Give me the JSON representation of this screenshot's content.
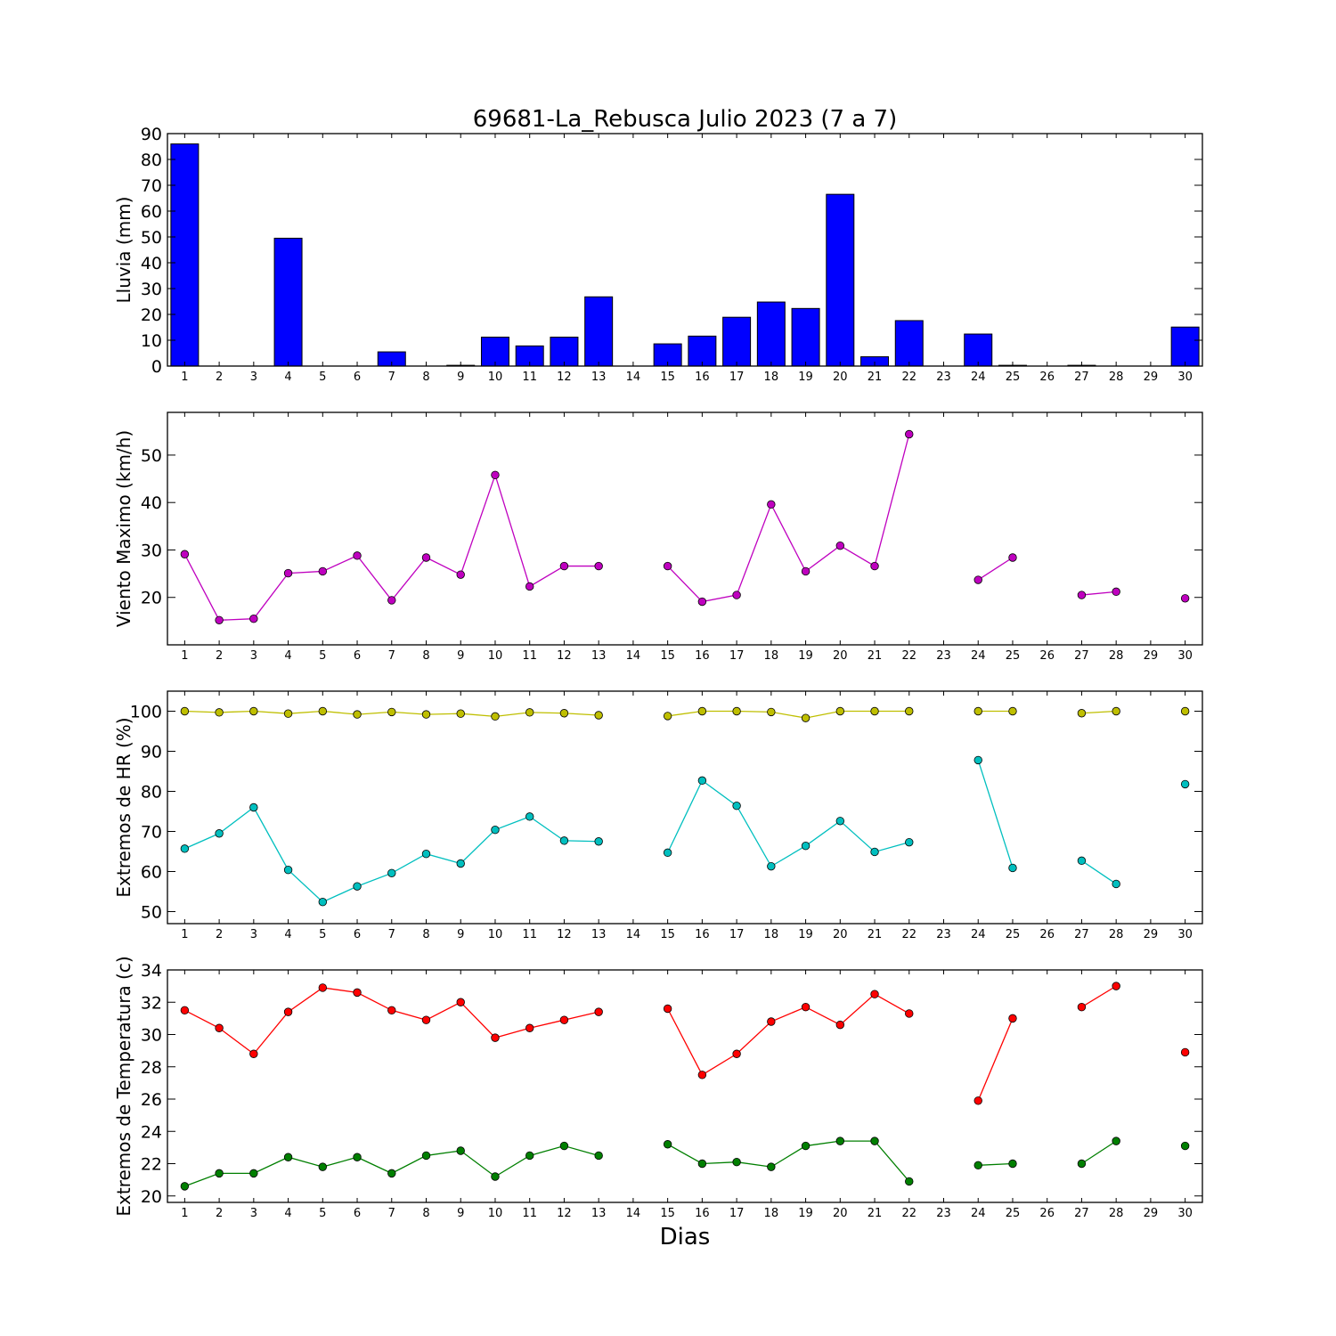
{
  "title": "69681-La_Rebusca Julio 2023  (7 a 7)",
  "xlabel": "Dias",
  "chart_data": [
    {
      "type": "bar",
      "ylabel": "Lluvia (mm)",
      "ylim": [
        0,
        90
      ],
      "yticks": [
        0,
        10,
        20,
        30,
        40,
        50,
        60,
        70,
        80,
        90
      ],
      "xticks": [
        1,
        2,
        3,
        4,
        5,
        6,
        7,
        8,
        9,
        10,
        11,
        12,
        13,
        14,
        15,
        16,
        17,
        18,
        19,
        20,
        21,
        22,
        23,
        24,
        25,
        26,
        27,
        28,
        29,
        30
      ],
      "xlim": [
        0.5,
        30.5
      ],
      "color": "#0000ff",
      "series": [
        {
          "x": [
            1,
            2,
            3,
            4,
            5,
            6,
            7,
            8,
            9,
            10,
            11,
            12,
            13,
            14,
            15,
            16,
            17,
            18,
            19,
            20,
            21,
            22,
            23,
            24,
            25,
            26,
            27,
            28,
            29,
            30
          ],
          "values": [
            86,
            0,
            0,
            49.5,
            0,
            0,
            5.5,
            0,
            0.3,
            11.2,
            7.8,
            11.2,
            26.8,
            0,
            8.6,
            11.6,
            18.9,
            24.8,
            22.3,
            66.5,
            3.6,
            17.6,
            0,
            12.4,
            0.3,
            0,
            0.3,
            0,
            0,
            15.1
          ]
        }
      ]
    },
    {
      "type": "line",
      "ylabel": "Viento Maximo (km/h)",
      "ylim": [
        10,
        59
      ],
      "yticks": [
        20,
        30,
        40,
        50
      ],
      "xticks": [
        1,
        2,
        3,
        4,
        5,
        6,
        7,
        8,
        9,
        10,
        11,
        12,
        13,
        14,
        15,
        16,
        17,
        18,
        19,
        20,
        21,
        22,
        23,
        24,
        25,
        26,
        27,
        28,
        29,
        30
      ],
      "xlim": [
        0.5,
        30.5
      ],
      "series": [
        {
          "color": "#bf00bf",
          "values": [
            29.1,
            15.2,
            15.5,
            25.1,
            25.5,
            28.8,
            19.4,
            28.4,
            24.8,
            45.8,
            22.3,
            26.6,
            26.6,
            null,
            26.6,
            19.1,
            20.5,
            39.6,
            25.5,
            30.9,
            26.6,
            54.4,
            null,
            23.7,
            28.4,
            null,
            20.5,
            21.2,
            null,
            19.8
          ]
        }
      ]
    },
    {
      "type": "line",
      "ylabel": "Extremos de HR (%)",
      "ylim": [
        47,
        105
      ],
      "yticks": [
        50,
        60,
        70,
        80,
        90,
        100
      ],
      "xticks": [
        1,
        2,
        3,
        4,
        5,
        6,
        7,
        8,
        9,
        10,
        11,
        12,
        13,
        14,
        15,
        16,
        17,
        18,
        19,
        20,
        21,
        22,
        23,
        24,
        25,
        26,
        27,
        28,
        29,
        30
      ],
      "xlim": [
        0.5,
        30.5
      ],
      "series": [
        {
          "color": "#bfbf00",
          "values": [
            100,
            99.7,
            100,
            99.4,
            100,
            99.2,
            99.8,
            99.2,
            99.4,
            98.7,
            99.7,
            99.5,
            99,
            null,
            98.8,
            100,
            100,
            99.8,
            98.3,
            100,
            100,
            100,
            null,
            100,
            100,
            null,
            99.5,
            100,
            null,
            100
          ]
        },
        {
          "color": "#00bfbf",
          "values": [
            65.7,
            69.5,
            76,
            60.4,
            52.4,
            56.3,
            59.6,
            64.4,
            62,
            70.4,
            73.7,
            67.7,
            67.5,
            null,
            64.7,
            82.7,
            76.4,
            61.3,
            66.4,
            72.6,
            64.9,
            67.3,
            null,
            87.8,
            60.9,
            null,
            62.7,
            56.9,
            null,
            81.8
          ]
        }
      ]
    },
    {
      "type": "line",
      "ylabel": "Extremos de Temperatura (c)",
      "ylim": [
        19.6,
        34
      ],
      "yticks": [
        20,
        22,
        24,
        26,
        28,
        30,
        32,
        34
      ],
      "xticks": [
        1,
        2,
        3,
        4,
        5,
        6,
        7,
        8,
        9,
        10,
        11,
        12,
        13,
        14,
        15,
        16,
        17,
        18,
        19,
        20,
        21,
        22,
        23,
        24,
        25,
        26,
        27,
        28,
        29,
        30
      ],
      "xlim": [
        0.5,
        30.5
      ],
      "series": [
        {
          "color": "#ff0000",
          "values": [
            31.5,
            30.4,
            28.8,
            31.4,
            32.9,
            32.6,
            31.5,
            30.9,
            32,
            29.8,
            30.4,
            30.9,
            31.4,
            null,
            31.6,
            27.5,
            28.8,
            30.8,
            31.7,
            30.6,
            32.5,
            31.3,
            null,
            25.9,
            31,
            null,
            31.7,
            33,
            null,
            28.9
          ]
        },
        {
          "color": "#007f00",
          "values": [
            20.6,
            21.4,
            21.4,
            22.4,
            21.8,
            22.4,
            21.4,
            22.5,
            22.8,
            21.2,
            22.5,
            23.1,
            22.5,
            null,
            23.2,
            22,
            22.1,
            21.8,
            23.1,
            23.4,
            23.4,
            20.9,
            null,
            21.9,
            22,
            null,
            22,
            23.4,
            null,
            23.1
          ]
        }
      ]
    }
  ]
}
